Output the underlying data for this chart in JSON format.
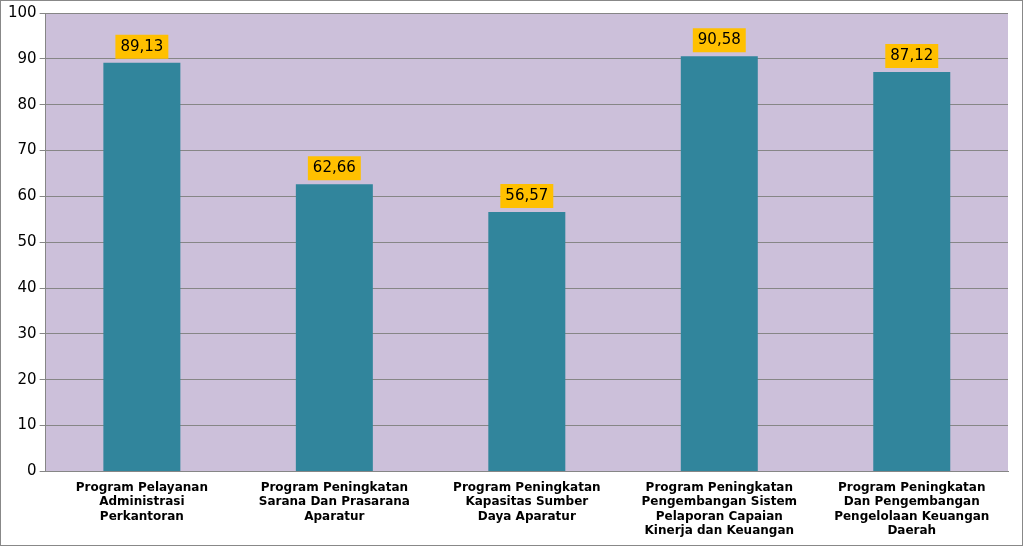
{
  "chart_data": {
    "type": "bar",
    "categories": [
      "Program Pelayanan Administrasi Perkantoran",
      "Program Peningkatan Sarana Dan Prasarana Aparatur",
      "Program Peningkatan Kapasitas Sumber Daya Aparatur",
      "Program Peningkatan Pengembangan Sistem Pelaporan Capaian Kinerja dan Keuangan",
      "Program Peningkatan Dan Pengembangan Pengelolaan Keuangan Daerah"
    ],
    "values": [
      89.13,
      62.66,
      56.57,
      90.58,
      87.12
    ],
    "value_labels": [
      "89,13",
      "62,66",
      "56,57",
      "90,58",
      "87,12"
    ],
    "color": "#31859c",
    "ylim": [
      0,
      100
    ],
    "yticks": [
      0,
      10,
      20,
      30,
      40,
      50,
      60,
      70,
      80,
      90,
      100
    ],
    "grid": "y",
    "legend": false
  }
}
